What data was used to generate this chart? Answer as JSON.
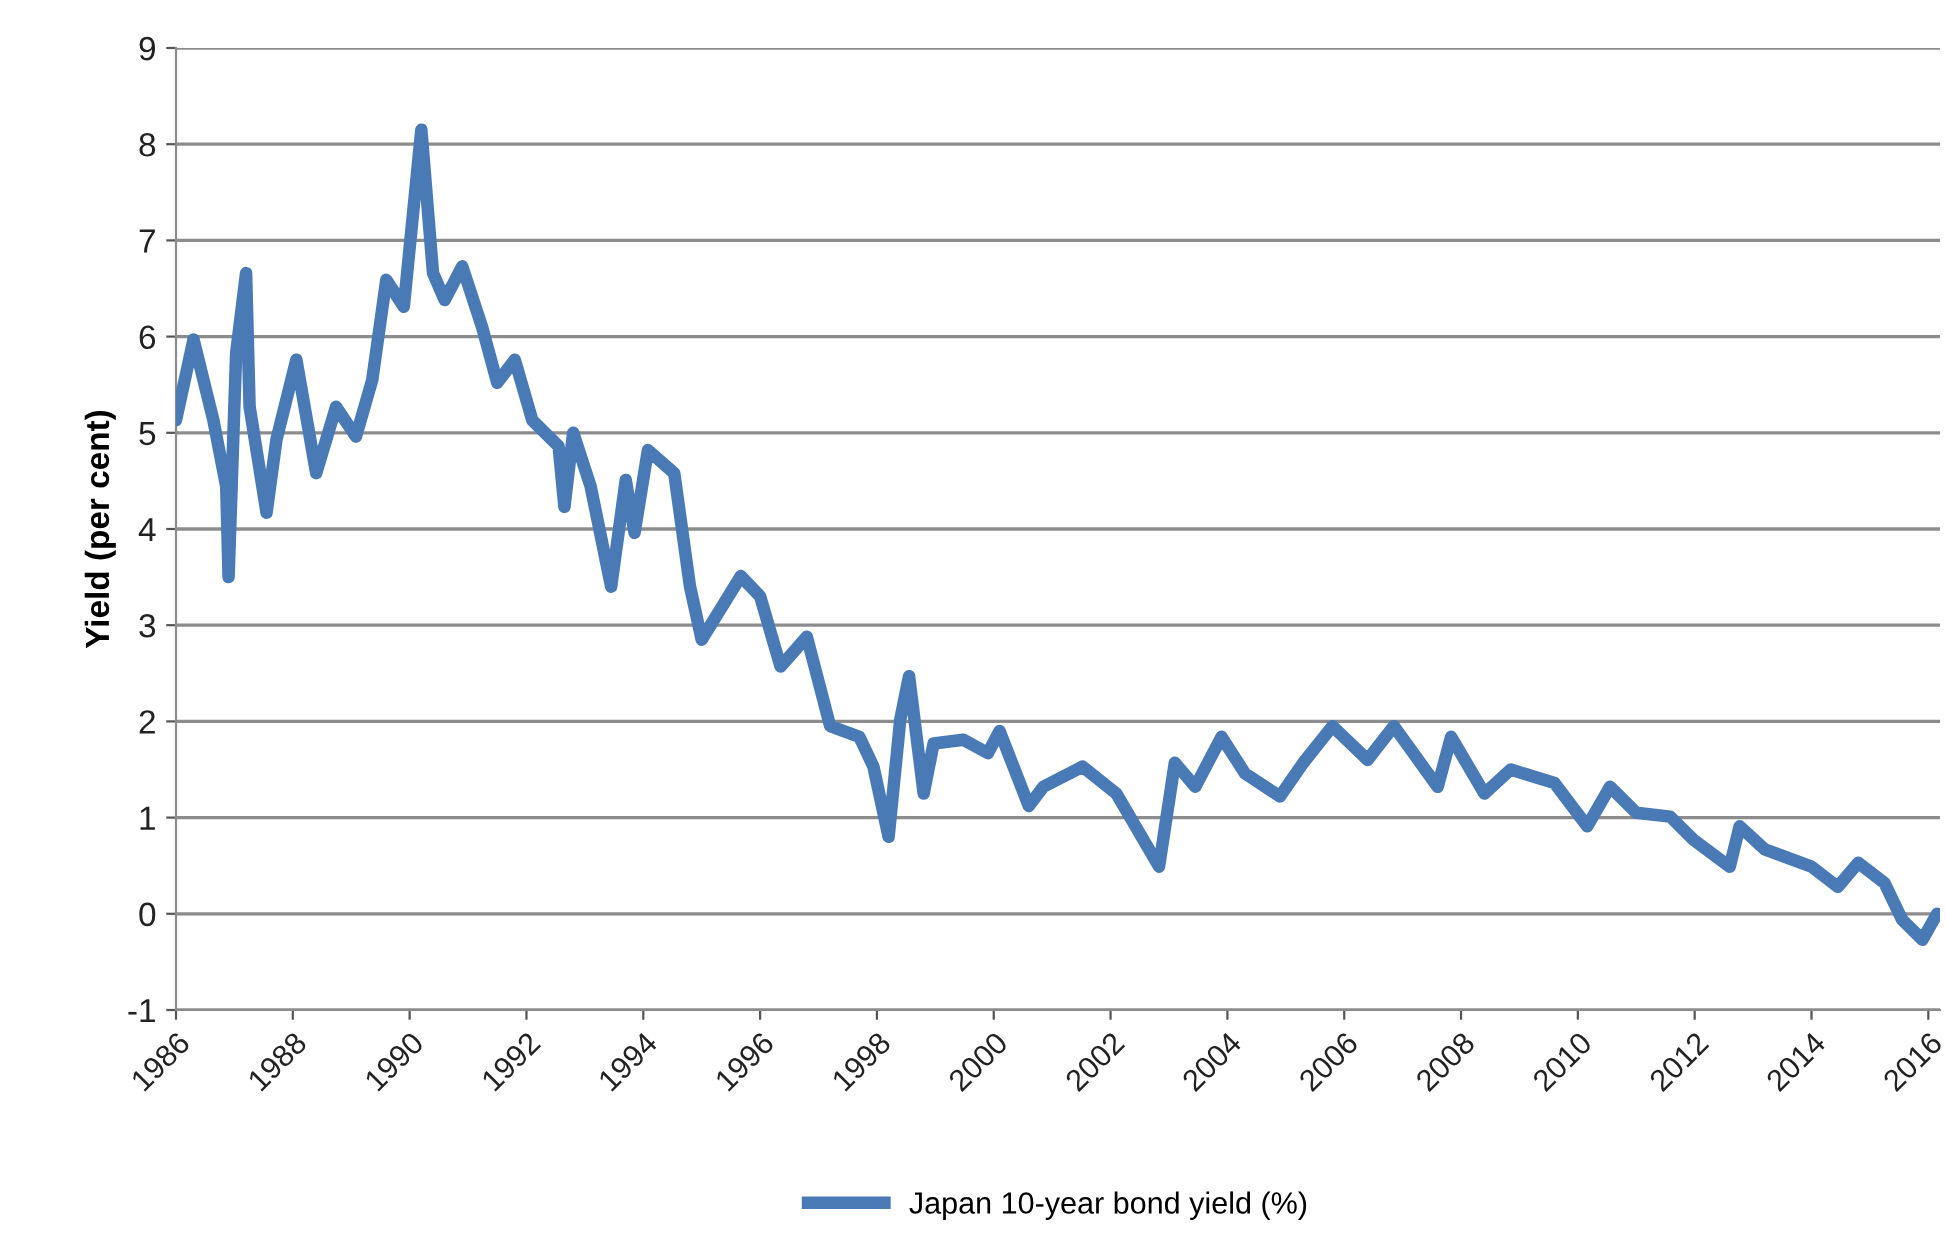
{
  "chart_data": {
    "type": "line",
    "ylabel": "Yield (per cent)",
    "xlim": [
      1986,
      2016.2
    ],
    "xticks": [
      1986,
      1988,
      1990,
      1992,
      1994,
      1996,
      1998,
      2000,
      2002,
      2004,
      2006,
      2008,
      2010,
      2012,
      2014,
      2016
    ],
    "ylim": [
      -1,
      9
    ],
    "yticks": [
      -1,
      0,
      1,
      2,
      3,
      4,
      5,
      6,
      7,
      8,
      9
    ],
    "grid": "y",
    "legend": "bottom",
    "series": [
      {
        "name": "Japan 10-year bond yield (%)",
        "color": "#4a7ab5",
        "x": [
          1986.0,
          1986.3,
          1986.64,
          1986.86,
          1986.9,
          1987.03,
          1987.2,
          1987.26,
          1987.55,
          1987.72,
          1988.06,
          1988.4,
          1988.74,
          1989.08,
          1989.36,
          1989.6,
          1989.9,
          1990.2,
          1990.4,
          1990.6,
          1990.9,
          1991.24,
          1991.5,
          1991.8,
          1992.1,
          1992.55,
          1992.65,
          1992.8,
          1993.1,
          1993.45,
          1993.7,
          1993.85,
          1994.08,
          1994.53,
          1994.8,
          1995.0,
          1995.67,
          1996.0,
          1996.35,
          1996.8,
          1997.2,
          1997.7,
          1997.94,
          1998.2,
          1998.4,
          1998.55,
          1998.8,
          1998.97,
          1999.48,
          1999.9,
          2000.1,
          2000.6,
          2000.85,
          2001.52,
          2002.1,
          2002.83,
          2003.1,
          2003.45,
          2003.9,
          2004.3,
          2004.9,
          2005.3,
          2005.8,
          2006.4,
          2006.85,
          2007.6,
          2007.83,
          2008.4,
          2008.85,
          2009.6,
          2010.16,
          2010.55,
          2011.0,
          2011.58,
          2011.98,
          2012.6,
          2012.77,
          2013.2,
          2014.0,
          2014.45,
          2014.8,
          2015.25,
          2015.55,
          2015.9,
          2016.15
        ],
        "values": [
          5.13,
          5.97,
          5.13,
          4.44,
          3.5,
          5.83,
          6.66,
          5.27,
          4.17,
          4.93,
          5.76,
          4.58,
          5.27,
          4.96,
          5.55,
          6.59,
          6.31,
          8.15,
          6.66,
          6.38,
          6.73,
          6.1,
          5.52,
          5.76,
          5.13,
          4.86,
          4.23,
          5.0,
          4.44,
          3.4,
          4.51,
          3.96,
          4.82,
          4.58,
          3.4,
          2.85,
          3.51,
          3.3,
          2.57,
          2.88,
          1.95,
          1.84,
          1.53,
          0.8,
          2.02,
          2.47,
          1.25,
          1.77,
          1.81,
          1.67,
          1.9,
          1.12,
          1.32,
          1.53,
          1.25,
          0.49,
          1.57,
          1.32,
          1.84,
          1.46,
          1.22,
          1.57,
          1.95,
          1.6,
          1.95,
          1.32,
          1.84,
          1.25,
          1.5,
          1.36,
          0.91,
          1.32,
          1.05,
          1.01,
          0.77,
          0.49,
          0.91,
          0.67,
          0.49,
          0.28,
          0.53,
          0.32,
          -0.06,
          -0.27,
          0.0
        ]
      }
    ]
  }
}
